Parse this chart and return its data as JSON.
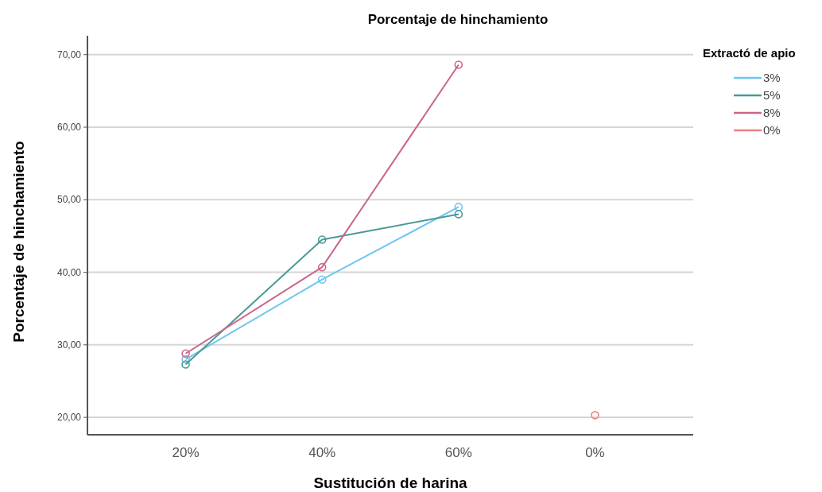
{
  "chart_data": {
    "type": "line",
    "title": "Porcentaje de hinchamiento",
    "xlabel": "Sustitución de harina",
    "ylabel": "Porcentaje de hinchamiento",
    "legend_title": "Extractó de apio",
    "categories": [
      "20%",
      "40%",
      "60%",
      "0%"
    ],
    "series": [
      {
        "name": "3%",
        "color": "#6ec6f0",
        "values": [
          28.0,
          39.0,
          49.0,
          null
        ]
      },
      {
        "name": "5%",
        "color": "#4a9a96",
        "values": [
          27.3,
          44.5,
          48.0,
          null
        ]
      },
      {
        "name": "8%",
        "color": "#c9668c",
        "values": [
          28.8,
          40.7,
          68.6,
          null
        ]
      },
      {
        "name": "0%",
        "color": "#f08080",
        "values": [
          null,
          null,
          null,
          20.3
        ]
      }
    ],
    "ylim": [
      17.6,
      72.6
    ],
    "yticks": [
      {
        "value": 20,
        "label": "20,00"
      },
      {
        "value": 30,
        "label": "30,00"
      },
      {
        "value": 40,
        "label": "40,00"
      },
      {
        "value": 50,
        "label": "50,00"
      },
      {
        "value": 60,
        "label": "60,00"
      },
      {
        "value": 70,
        "label": "70,00"
      }
    ],
    "grid": "y",
    "legend": "top right",
    "marker": "circle",
    "line_style": "solid"
  }
}
